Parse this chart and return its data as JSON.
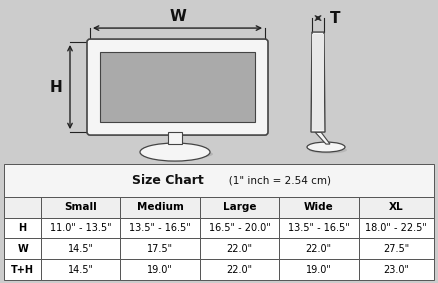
{
  "background_color": "#cccccc",
  "table_bg": "#ffffff",
  "title": "Size Chart",
  "subtitle": "   (1\" inch = 2.54 cm)",
  "col_headers": [
    "",
    "Small",
    "Medium",
    "Large",
    "Wide",
    "XL"
  ],
  "row_labels": [
    "H",
    "W",
    "T+H"
  ],
  "table_data": [
    [
      "11.0\" - 13.5\"",
      "13.5\" - 16.5\"",
      "16.5\" - 20.0\"",
      "13.5\" - 16.5\"",
      "18.0\" - 22.5\""
    ],
    [
      "14.5\"",
      "17.5\"",
      "22.0\"",
      "22.0\"",
      "27.5\""
    ],
    [
      "14.5\"",
      "19.0\"",
      "22.0\"",
      "19.0\"",
      "23.0\""
    ]
  ],
  "arrow_color": "#222222",
  "label_color": "#111111",
  "monitor_face": "#f5f5f5",
  "screen_color": "#aaaaaa",
  "line_color": "#444444"
}
